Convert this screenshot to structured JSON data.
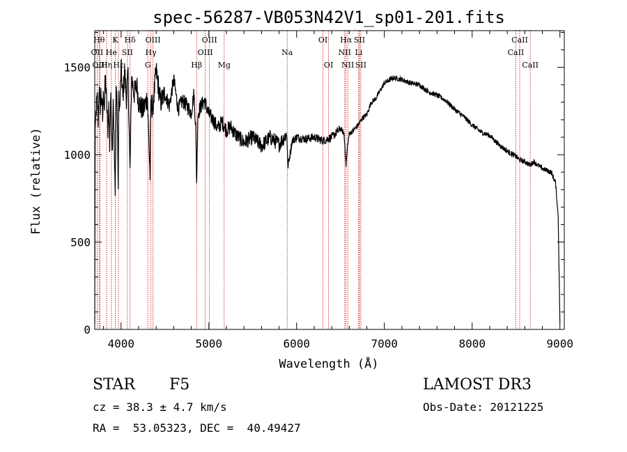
{
  "chart_data": {
    "type": "line",
    "title": "spec-56287-VB053N42V1_sp01-201.fits",
    "xlabel": "Wavelength (Å)",
    "ylabel": "Flux (relative)",
    "xlim": [
      3700,
      9050
    ],
    "ylim": [
      0,
      1710
    ],
    "xticks": [
      4000,
      5000,
      6000,
      7000,
      8000,
      9000
    ],
    "yticks": [
      0,
      500,
      1000,
      1500
    ],
    "series": [
      {
        "name": "spectrum",
        "x": [
          3700,
          3705,
          3712,
          3720,
          3730,
          3740,
          3750,
          3760,
          3770,
          3780,
          3790,
          3800,
          3810,
          3820,
          3835,
          3850,
          3860,
          3870,
          3880,
          3890,
          3900,
          3910,
          3920,
          3933,
          3945,
          3955,
          3968,
          3975,
          3985,
          4000,
          4020,
          4040,
          4060,
          4080,
          4102,
          4120,
          4150,
          4180,
          4200,
          4250,
          4300,
          4330,
          4340,
          4360,
          4400,
          4450,
          4500,
          4550,
          4600,
          4650,
          4700,
          4750,
          4800,
          4830,
          4850,
          4861,
          4875,
          4900,
          4950,
          5000,
          5050,
          5100,
          5150,
          5200,
          5250,
          5300,
          5400,
          5500,
          5600,
          5700,
          5800,
          5890,
          5900,
          5950,
          6000,
          6100,
          6200,
          6300,
          6400,
          6500,
          6540,
          6563,
          6580,
          6600,
          6650,
          6700,
          6750,
          6800,
          6850,
          6900,
          7000,
          7100,
          7200,
          7300,
          7400,
          7500,
          7600,
          7700,
          7800,
          7900,
          8000,
          8100,
          8200,
          8300,
          8400,
          8500,
          8542,
          8600,
          8662,
          8700,
          8800,
          8900,
          8950,
          8980,
          8990,
          9000
        ],
        "y": [
          30,
          1150,
          1240,
          1280,
          1320,
          1200,
          1400,
          1250,
          1350,
          1300,
          1200,
          1380,
          1270,
          1450,
          1300,
          1150,
          1280,
          1050,
          1320,
          1240,
          1000,
          1350,
          1100,
          750,
          1400,
          1300,
          800,
          1350,
          1250,
          1500,
          1320,
          1480,
          1330,
          1450,
          900,
          1440,
          1350,
          1400,
          1300,
          1250,
          1330,
          880,
          1300,
          1260,
          1480,
          1300,
          1350,
          1280,
          1430,
          1260,
          1310,
          1280,
          1240,
          1350,
          1170,
          840,
          1230,
          1270,
          1310,
          1230,
          1200,
          1150,
          1190,
          1140,
          1160,
          1120,
          1070,
          1100,
          1050,
          1100,
          1060,
          1120,
          930,
          1080,
          1100,
          1090,
          1100,
          1080,
          1100,
          1150,
          1120,
          940,
          1050,
          1120,
          1140,
          1170,
          1210,
          1230,
          1300,
          1320,
          1410,
          1440,
          1430,
          1410,
          1400,
          1360,
          1340,
          1310,
          1260,
          1220,
          1170,
          1130,
          1110,
          1060,
          1020,
          990,
          970,
          960,
          940,
          960,
          920,
          900,
          840,
          650,
          350,
          40
        ]
      }
    ],
    "lines": [
      {
        "label": "Hθ",
        "x": 3750,
        "row": 0
      },
      {
        "label": "OII",
        "x": 3727,
        "row": 1
      },
      {
        "label": "OIII",
        "x": 3760,
        "row": 2
      },
      {
        "label": "He",
        "x": 3889,
        "row": 1
      },
      {
        "label": "Hη",
        "x": 3835,
        "row": 2
      },
      {
        "label": "K",
        "x": 3934,
        "row": 0
      },
      {
        "label": "Hε",
        "x": 3970,
        "row": 2
      },
      {
        "label": "Hδ",
        "x": 4102,
        "row": 0
      },
      {
        "label": "SII",
        "x": 4072,
        "row": 1
      },
      {
        "label": "OIII",
        "x": 4363,
        "row": 0
      },
      {
        "label": "Hγ",
        "x": 4340,
        "row": 1
      },
      {
        "label": "G",
        "x": 4305,
        "row": 2
      },
      {
        "label": "Hβ",
        "x": 4861,
        "row": 2
      },
      {
        "label": "OIII",
        "x": 5007,
        "row": 0
      },
      {
        "label": "OIII",
        "x": 4959,
        "row": 1
      },
      {
        "label": "Mg",
        "x": 5175,
        "row": 2
      },
      {
        "label": "Na",
        "x": 5893,
        "row": 1
      },
      {
        "label": "OI",
        "x": 6300,
        "row": 0
      },
      {
        "label": "OI",
        "x": 6364,
        "row": 2
      },
      {
        "label": "Hα",
        "x": 6563,
        "row": 0
      },
      {
        "label": "NII",
        "x": 6548,
        "row": 1
      },
      {
        "label": "NII",
        "x": 6583,
        "row": 2
      },
      {
        "label": "SII",
        "x": 6716,
        "row": 0
      },
      {
        "label": "Li",
        "x": 6708,
        "row": 1
      },
      {
        "label": "SII",
        "x": 6731,
        "row": 2
      },
      {
        "label": "CaII",
        "x": 8542,
        "row": 0
      },
      {
        "label": "CaII",
        "x": 8498,
        "row": 1
      },
      {
        "label": "CaII",
        "x": 8662,
        "row": 2
      }
    ]
  },
  "info": {
    "object_class": "STAR",
    "subclass": "F5",
    "survey": "LAMOST DR3",
    "cz": "cz = 38.3 ± 4.7 km/s",
    "obs_date": "Obs-Date: 20121225",
    "coords": "RA =  53.05323, DEC =  40.49427"
  },
  "colors": {
    "line_marker": "#cc0000",
    "spectrum": "#000000"
  }
}
